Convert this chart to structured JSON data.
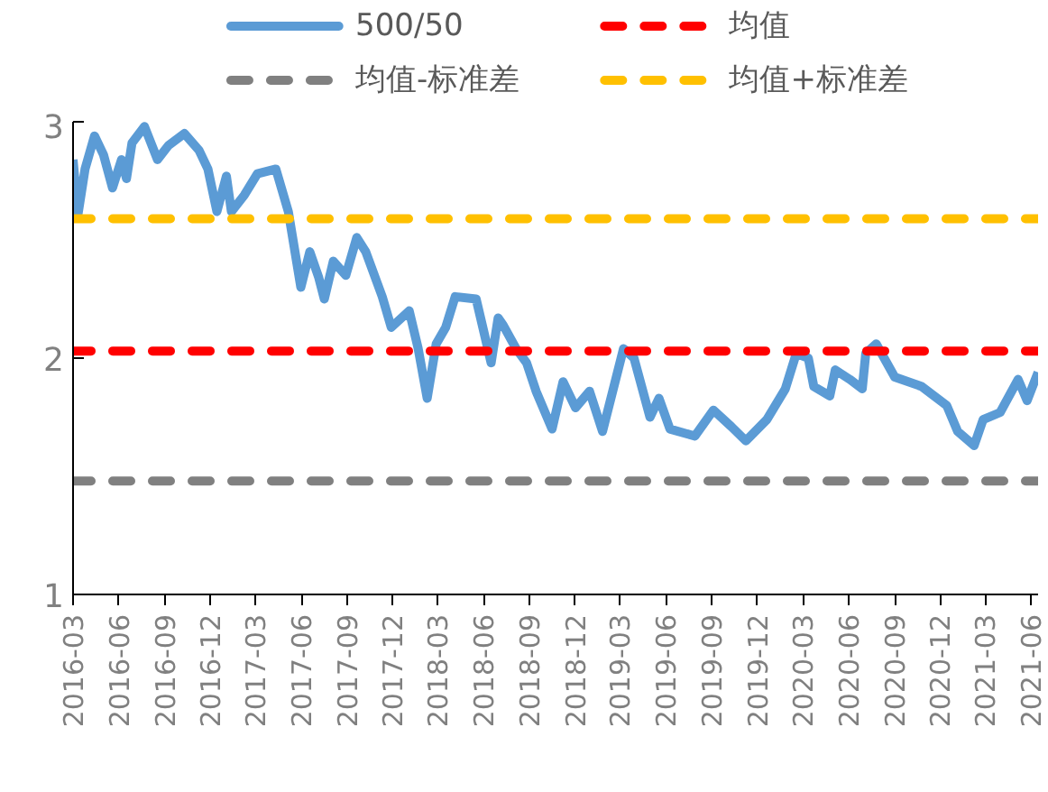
{
  "chart_data": {
    "type": "line",
    "legend": "top",
    "grid": false,
    "line_style": "solid",
    "marker": "none",
    "xlim": [
      "2016-03-01",
      "2021-06-15"
    ],
    "ylim": [
      1,
      3
    ],
    "yticks": [
      1,
      2,
      3
    ],
    "xticks": [
      {
        "value": "2016-03-01",
        "label": "2016-03"
      },
      {
        "value": "2016-06-01",
        "label": "2016-06"
      },
      {
        "value": "2016-09-01",
        "label": "2016-09"
      },
      {
        "value": "2016-12-01",
        "label": "2016-12"
      },
      {
        "value": "2017-03-01",
        "label": "2017-03"
      },
      {
        "value": "2017-06-01",
        "label": "2017-06"
      },
      {
        "value": "2017-09-01",
        "label": "2017-09"
      },
      {
        "value": "2017-12-01",
        "label": "2017-12"
      },
      {
        "value": "2018-03-01",
        "label": "2018-03"
      },
      {
        "value": "2018-06-01",
        "label": "2018-06"
      },
      {
        "value": "2018-09-01",
        "label": "2018-09"
      },
      {
        "value": "2018-12-01",
        "label": "2018-12"
      },
      {
        "value": "2019-03-01",
        "label": "2019-03"
      },
      {
        "value": "2019-06-01",
        "label": "2019-06"
      },
      {
        "value": "2019-09-01",
        "label": "2019-09"
      },
      {
        "value": "2019-12-01",
        "label": "2019-12"
      },
      {
        "value": "2020-03-01",
        "label": "2020-03"
      },
      {
        "value": "2020-06-01",
        "label": "2020-06"
      },
      {
        "value": "2020-09-01",
        "label": "2020-09"
      },
      {
        "value": "2020-12-01",
        "label": "2020-12"
      },
      {
        "value": "2021-03-01",
        "label": "2021-03"
      },
      {
        "value": "2021-06-01",
        "label": "2021-06"
      }
    ],
    "series": [
      {
        "name": "500/50",
        "color": "#5b9bd5",
        "x": [
          "2016-03-01",
          "2016-03-11",
          "2016-03-25",
          "2016-04-13",
          "2016-05-01",
          "2016-05-19",
          "2016-06-06",
          "2016-06-16",
          "2016-06-27",
          "2016-07-22",
          "2016-08-17",
          "2016-09-08",
          "2016-10-10",
          "2016-11-08",
          "2016-11-26",
          "2016-12-14",
          "2017-01-02",
          "2017-01-12",
          "2017-02-07",
          "2017-03-05",
          "2017-04-11",
          "2017-05-06",
          "2017-05-31",
          "2017-06-18",
          "2017-07-06",
          "2017-07-17",
          "2017-08-04",
          "2017-08-29",
          "2017-09-20",
          "2017-10-08",
          "2017-11-10",
          "2017-11-28",
          "2018-01-03",
          "2018-01-21",
          "2018-02-08",
          "2018-02-26",
          "2018-03-17",
          "2018-04-05",
          "2018-05-17",
          "2018-06-16",
          "2018-06-30",
          "2018-07-10",
          "2018-08-05",
          "2018-08-26",
          "2018-09-14",
          "2018-10-16",
          "2018-11-07",
          "2018-12-02",
          "2018-12-30",
          "2019-01-25",
          "2019-03-08",
          "2019-03-29",
          "2019-04-30",
          "2019-05-18",
          "2019-06-09",
          "2019-07-29",
          "2019-09-04",
          "2019-10-10",
          "2019-11-08",
          "2019-12-20",
          "2020-01-26",
          "2020-02-17",
          "2020-03-12",
          "2020-03-23",
          "2020-04-24",
          "2020-05-05",
          "2020-06-03",
          "2020-06-28",
          "2020-07-05",
          "2020-07-26",
          "2020-09-01",
          "2020-10-25",
          "2020-12-14",
          "2021-01-05",
          "2021-02-07",
          "2021-02-25",
          "2021-03-31",
          "2021-05-06",
          "2021-05-24",
          "2021-06-15"
        ],
        "values": [
          2.84,
          2.61,
          2.8,
          2.94,
          2.86,
          2.72,
          2.84,
          2.76,
          2.91,
          2.98,
          2.84,
          2.9,
          2.95,
          2.88,
          2.8,
          2.62,
          2.77,
          2.62,
          2.69,
          2.78,
          2.8,
          2.62,
          2.3,
          2.45,
          2.34,
          2.25,
          2.41,
          2.35,
          2.51,
          2.45,
          2.26,
          2.13,
          2.2,
          2.04,
          1.83,
          2.06,
          2.13,
          2.26,
          2.25,
          1.98,
          2.17,
          2.14,
          2.04,
          1.98,
          1.86,
          1.7,
          1.9,
          1.79,
          1.86,
          1.69,
          2.04,
          2.0,
          1.75,
          1.83,
          1.7,
          1.67,
          1.78,
          1.71,
          1.65,
          1.74,
          1.87,
          2.02,
          2.0,
          1.88,
          1.84,
          1.95,
          1.91,
          1.87,
          2.02,
          2.06,
          1.92,
          1.88,
          1.8,
          1.69,
          1.63,
          1.74,
          1.77,
          1.91,
          1.82,
          1.94
        ]
      }
    ],
    "ref_lines": [
      {
        "axis": "y",
        "value": 2.03,
        "label": "均值",
        "color": "#ff0000",
        "line_style": "dashed"
      },
      {
        "axis": "y",
        "value": 1.48,
        "label": "均值-标准差",
        "color": "#808080",
        "line_style": "dashed"
      },
      {
        "axis": "y",
        "value": 2.59,
        "label": "均值+标准差",
        "color": "#ffc000",
        "line_style": "dashed"
      }
    ]
  }
}
